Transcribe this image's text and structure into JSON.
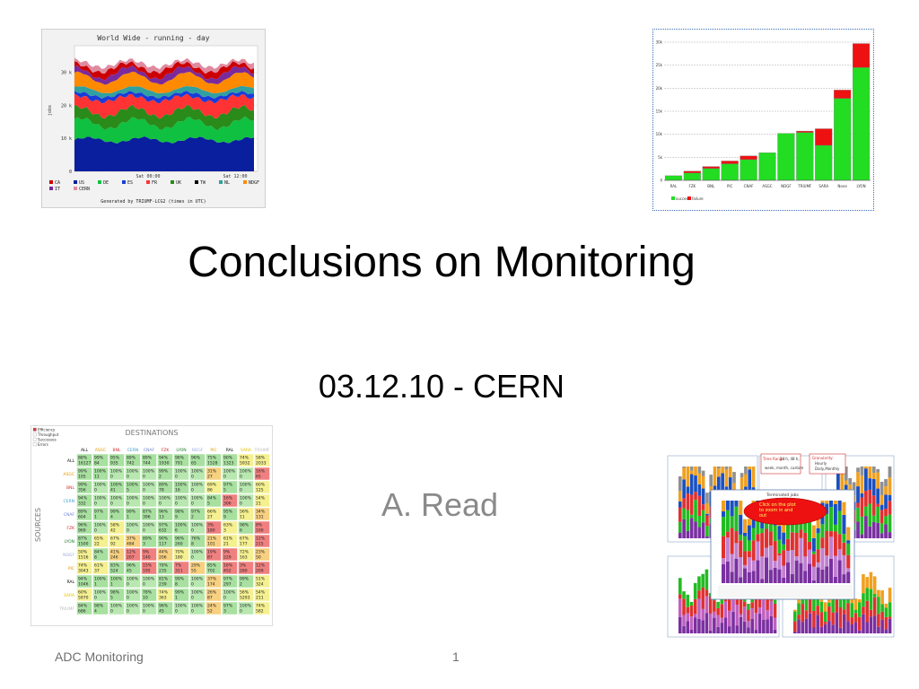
{
  "slide": {
    "title": "Conclusions on Monitoring",
    "subtitle": "03.12.10 - CERN",
    "author": "A. Read",
    "footer_left": "ADC Monitoring",
    "page_number": "1"
  },
  "chart_data": [
    {
      "type": "area",
      "title": "World Wide - running - day",
      "ylabel": "jobs",
      "y_ticks": [
        "0",
        "10 k",
        "20 k",
        "30 k"
      ],
      "x_ticks": [
        "Sat 00:00",
        "Sat 12:00"
      ],
      "legend": [
        "CA",
        "US",
        "DE",
        "ES",
        "FR",
        "UK",
        "TW",
        "NL",
        "NDGF",
        "IT",
        "CERN"
      ],
      "colors": {
        "CA": "#cc0000",
        "US": "#0a1f9e",
        "DE": "#10c040",
        "ES": "#1a3cd8",
        "FR": "#ff3333",
        "UK": "#2a8a1a",
        "TW": "#000000",
        "NL": "#30a0a0",
        "NDGF": "#ff8a00",
        "IT": "#7a2a9a",
        "CERN": "#e08aa0"
      },
      "footnote": "Generated by TRIUMF-LCG2 (times in UTC)"
    },
    {
      "type": "bar",
      "categories": [
        "RAL",
        "FZK",
        "BNL",
        "PIC",
        "CNAF",
        "ASGC",
        "NDGF",
        "TRIUMF",
        "SARA",
        "None",
        "LYON"
      ],
      "y_ticks": [
        "0",
        "5k",
        "10k",
        "15k",
        "20k",
        "25k",
        "30k"
      ],
      "ylim": [
        0,
        30000
      ],
      "series": [
        {
          "name": "success",
          "color": "#22dd22",
          "values": [
            1000,
            1600,
            2600,
            3600,
            4500,
            6000,
            10200,
            10400,
            7600,
            17800,
            24500
          ]
        },
        {
          "name": "failure",
          "color": "#ee1111",
          "values": [
            0,
            400,
            400,
            600,
            800,
            0,
            0,
            300,
            3600,
            1800,
            5200
          ]
        }
      ]
    }
  ],
  "matrix": {
    "header": "DESTINATIONS",
    "side_label": "SOURCES",
    "legend": [
      "Efficiency",
      "Throughput",
      "Successes",
      "Errors"
    ],
    "columns": [
      "ALL",
      "ASGC",
      "BNL",
      "CERN",
      "CNAF",
      "FZK",
      "LYON",
      "NDGF",
      "PIC",
      "RAL",
      "SARA",
      "TRIUMF"
    ],
    "rows": [
      {
        "label": "ALL",
        "cells": [
          [
            "88%",
            "16127"
          ],
          [
            "99%",
            "84"
          ],
          [
            "95%",
            "935"
          ],
          [
            "89%",
            "742"
          ],
          [
            "89%",
            "744"
          ],
          [
            "94%",
            "1930"
          ],
          [
            "96%",
            "791"
          ],
          [
            "96%",
            "65"
          ],
          [
            "75%",
            "1528"
          ],
          [
            "90%",
            "1323"
          ],
          [
            "74%",
            "5932"
          ],
          [
            "58%",
            "2033"
          ]
        ]
      },
      {
        "label": "ASGC",
        "cells": [
          [
            "99%",
            "105"
          ],
          [
            "100%",
            "11"
          ],
          [
            "100%",
            "0"
          ],
          [
            "100%",
            "0"
          ],
          [
            "100%",
            "0"
          ],
          [
            "99%",
            "2"
          ],
          [
            "100%",
            "0"
          ],
          [
            "100%",
            "0"
          ],
          [
            "31%",
            "27"
          ],
          [
            "100%",
            "0"
          ],
          [
            "100%",
            "0"
          ],
          [
            "16%",
            "65"
          ]
        ]
      },
      {
        "label": "BNL",
        "cells": [
          [
            "99%",
            "356"
          ],
          [
            "100%",
            "0"
          ],
          [
            "100%",
            "41"
          ],
          [
            "100%",
            "5"
          ],
          [
            "100%",
            "0"
          ],
          [
            "89%",
            "78"
          ],
          [
            "100%",
            "16"
          ],
          [
            "100%",
            "0"
          ],
          [
            "69%",
            "86"
          ],
          [
            "97%",
            "5"
          ],
          [
            "100%",
            "0"
          ],
          [
            "60%",
            "125"
          ]
        ]
      },
      {
        "label": "CERN",
        "cells": [
          [
            "94%",
            "332"
          ],
          [
            "100%",
            "0"
          ],
          [
            "100%",
            "0"
          ],
          [
            "100%",
            "0"
          ],
          [
            "100%",
            "0"
          ],
          [
            "100%",
            "0"
          ],
          [
            "100%",
            "0"
          ],
          [
            "100%",
            "0"
          ],
          [
            "84%",
            "5"
          ],
          [
            "16%",
            "306"
          ],
          [
            "100%",
            "0"
          ],
          [
            "54%",
            "21"
          ]
        ]
      },
      {
        "label": "CNAF",
        "cells": [
          [
            "89%",
            "604"
          ],
          [
            "97%",
            "1"
          ],
          [
            "99%",
            "4"
          ],
          [
            "99%",
            "1"
          ],
          [
            "87%",
            "396"
          ],
          [
            "96%",
            "13"
          ],
          [
            "98%",
            "9"
          ],
          [
            "97%",
            "2"
          ],
          [
            "66%",
            "27"
          ],
          [
            "95%",
            "9"
          ],
          [
            "56%",
            "11"
          ],
          [
            "34%",
            "131"
          ]
        ]
      },
      {
        "label": "FZK",
        "cells": [
          [
            "96%",
            "969"
          ],
          [
            "100%",
            "0"
          ],
          [
            "58%",
            "42"
          ],
          [
            "100%",
            "0"
          ],
          [
            "100%",
            "0"
          ],
          [
            "97%",
            "632"
          ],
          [
            "100%",
            "6"
          ],
          [
            "100%",
            "0"
          ],
          [
            "3%",
            "180"
          ],
          [
            "63%",
            "3"
          ],
          [
            "98%",
            "6"
          ],
          [
            "8%",
            "100"
          ]
        ]
      },
      {
        "label": "LYON",
        "cells": [
          [
            "87%",
            "1500"
          ],
          [
            "65%",
            "22"
          ],
          [
            "67%",
            "92"
          ],
          [
            "37%",
            "484"
          ],
          [
            "89%",
            "3"
          ],
          [
            "90%",
            "117"
          ],
          [
            "96%",
            "260"
          ],
          [
            "76%",
            "8"
          ],
          [
            "21%",
            "101"
          ],
          [
            "61%",
            "21"
          ],
          [
            "67%",
            "177"
          ],
          [
            "12%",
            "215"
          ]
        ]
      },
      {
        "label": "NDGF",
        "cells": [
          [
            "50%",
            "1516"
          ],
          [
            "84%",
            "8"
          ],
          [
            "41%",
            "246"
          ],
          [
            "12%",
            "207"
          ],
          [
            "9%",
            "140"
          ],
          [
            "44%",
            "206"
          ],
          [
            "70%",
            "180"
          ],
          [
            "100%",
            "0"
          ],
          [
            "19%",
            "87"
          ],
          [
            "9%",
            "229"
          ],
          [
            "72%",
            "163"
          ],
          [
            "23%",
            "50"
          ]
        ]
      },
      {
        "label": "PIC",
        "cells": [
          [
            "74%",
            "3043"
          ],
          [
            "61%",
            "37"
          ],
          [
            "83%",
            "524"
          ],
          [
            "96%",
            "45"
          ],
          [
            "15%",
            "195"
          ],
          [
            "78%",
            "235"
          ],
          [
            "7%",
            "311"
          ],
          [
            "29%",
            "55"
          ],
          [
            "85%",
            "702"
          ],
          [
            "16%",
            "452"
          ],
          [
            "3%",
            "280"
          ],
          [
            "12%",
            "209"
          ]
        ]
      },
      {
        "label": "RAL",
        "cells": [
          [
            "94%",
            "1046"
          ],
          [
            "100%",
            "1"
          ],
          [
            "100%",
            "1"
          ],
          [
            "100%",
            "0"
          ],
          [
            "100%",
            "0"
          ],
          [
            "81%",
            "239"
          ],
          [
            "99%",
            "8"
          ],
          [
            "100%",
            "0"
          ],
          [
            "37%",
            "174"
          ],
          [
            "97%",
            "297"
          ],
          [
            "99%",
            "2"
          ],
          [
            "51%",
            "324"
          ]
        ]
      },
      {
        "label": "SARA",
        "cells": [
          [
            "60%",
            "5970"
          ],
          [
            "100%",
            "0"
          ],
          [
            "98%",
            "5"
          ],
          [
            "100%",
            "0"
          ],
          [
            "78%",
            "10"
          ],
          [
            "74%",
            "363"
          ],
          [
            "99%",
            "1"
          ],
          [
            "100%",
            "0"
          ],
          [
            "26%",
            "87"
          ],
          [
            "100%",
            "0"
          ],
          [
            "56%",
            "5293"
          ],
          [
            "54%",
            "211"
          ]
        ]
      },
      {
        "label": "TRIUMF",
        "cells": [
          [
            "84%",
            "686"
          ],
          [
            "98%",
            "4"
          ],
          [
            "100%",
            "0"
          ],
          [
            "100%",
            "0"
          ],
          [
            "100%",
            "0"
          ],
          [
            "96%",
            "45"
          ],
          [
            "100%",
            "0"
          ],
          [
            "100%",
            "0"
          ],
          [
            "24%",
            "52"
          ],
          [
            "97%",
            "3"
          ],
          [
            "100%",
            "0"
          ],
          [
            "74%",
            "582"
          ]
        ]
      }
    ]
  },
  "dashboard": {
    "panel_title": "Terminated jobs",
    "time_range_label": "Time Range:",
    "time_range_value": "24 h, 48 h,",
    "time_range_more": "week, month, custom",
    "granularity_label": "Granularity:",
    "granularity_value": "Hourly",
    "granularity_more": "Daily,Monthly",
    "callout": "Click on the plot to zoom in and out"
  }
}
